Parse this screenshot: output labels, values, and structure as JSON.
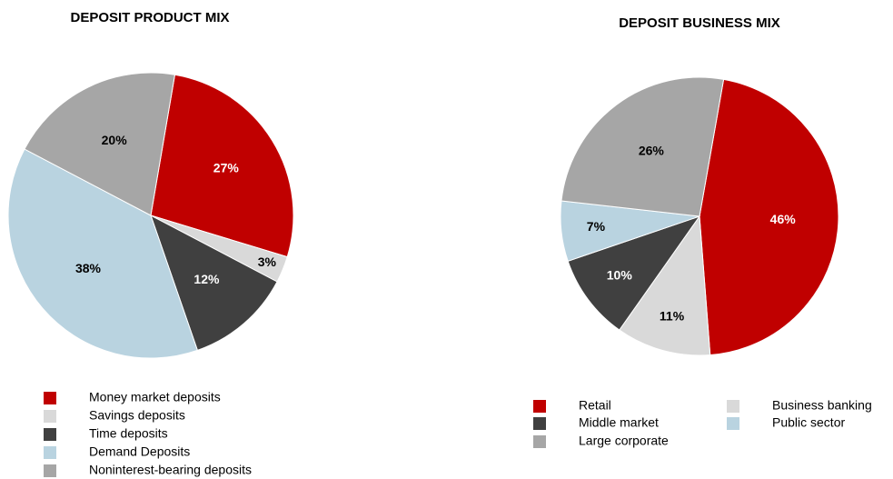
{
  "chart_data": [
    {
      "type": "pie",
      "title": "DEPOSIT PRODUCT MIX",
      "categories": [
        "Money market deposits",
        "Savings deposits",
        "Time deposits",
        "Demand Deposits",
        "Noninterest-bearing deposits"
      ],
      "values": [
        27,
        3,
        12,
        38,
        20
      ],
      "value_labels": [
        "27%",
        "3%",
        "12%",
        "38%",
        "20%"
      ],
      "colors": [
        "#c00000",
        "#d9d9d9",
        "#404040",
        "#b9d3e0",
        "#a6a6a6"
      ]
    },
    {
      "type": "pie",
      "title": "DEPOSIT BUSINESS MIX",
      "categories": [
        "Retail",
        "Business banking",
        "Middle market",
        "Public sector",
        "Large corporate"
      ],
      "values": [
        46,
        11,
        10,
        7,
        26
      ],
      "value_labels": [
        "46%",
        "11%",
        "10%",
        "7%",
        "26%"
      ],
      "colors": [
        "#c00000",
        "#d9d9d9",
        "#404040",
        "#b9d3e0",
        "#a6a6a6"
      ]
    }
  ]
}
